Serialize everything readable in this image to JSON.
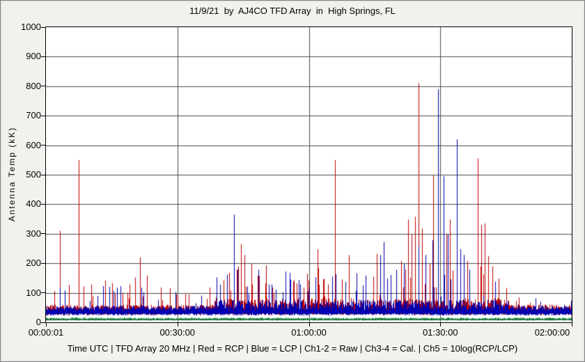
{
  "chart_data": {
    "type": "line",
    "title": "11/9/21  by  AJ4CO TFD Array  in  High Springs, FL",
    "xlabel": "Time UTC",
    "ylabel": "Antenna Temp (kK)",
    "ylim": [
      0,
      1000
    ],
    "y_ticks": [
      0,
      100,
      200,
      300,
      400,
      500,
      600,
      700,
      800,
      900,
      1000
    ],
    "x_ticks": [
      {
        "label": "00:00:01",
        "pos": 0
      },
      {
        "label": "00:30:00",
        "pos": 0.25
      },
      {
        "label": "01:00:00",
        "pos": 0.5
      },
      {
        "label": "01:30:00",
        "pos": 0.75
      },
      {
        "label": "02:00:00",
        "pos": 1
      }
    ],
    "x_range_seconds": [
      0,
      7200
    ],
    "grid": true,
    "legend_position": "none",
    "caption": "Time UTC | TFD Array 20 MHz | Red = RCP | Blue = LCP | Ch1-2 = Raw | Ch3-4 = Cal. | Ch5 = 10log(RCP/LCP)",
    "busy_regions": [
      [
        0,
        2300,
        75
      ],
      [
        2300,
        6350,
        135
      ],
      [
        6350,
        7200,
        45
      ]
    ],
    "series": [
      {
        "name": "RCP (Red)",
        "color": "#c00000",
        "baseline": 38,
        "noise_scale": 1.0,
        "spikes": [
          [
            190,
            310
          ],
          [
            448,
            550
          ],
          [
            620,
            128
          ],
          [
            810,
            142
          ],
          [
            905,
            133
          ],
          [
            1050,
            100
          ],
          [
            1145,
            128
          ],
          [
            1220,
            152
          ],
          [
            1290,
            220
          ],
          [
            1385,
            158
          ],
          [
            1570,
            118
          ],
          [
            1800,
            90
          ],
          [
            2240,
            118
          ],
          [
            2335,
            133
          ],
          [
            2430,
            142
          ],
          [
            2530,
            108
          ],
          [
            2670,
            265
          ],
          [
            2720,
            228
          ],
          [
            2815,
            198
          ],
          [
            2900,
            158
          ],
          [
            3000,
            132
          ],
          [
            3100,
            118
          ],
          [
            3385,
            138
          ],
          [
            3435,
            132
          ],
          [
            3530,
            118
          ],
          [
            3720,
            248
          ],
          [
            3860,
            128
          ],
          [
            3957,
            550
          ],
          [
            4150,
            228
          ],
          [
            4250,
            138
          ],
          [
            4530,
            232
          ],
          [
            4625,
            268
          ],
          [
            4720,
            148
          ],
          [
            4860,
            208
          ],
          [
            4958,
            348
          ],
          [
            5010,
            298
          ],
          [
            5053,
            358
          ],
          [
            5101,
            810
          ],
          [
            5150,
            318
          ],
          [
            5250,
            198
          ],
          [
            5302,
            498
          ],
          [
            5480,
            298
          ],
          [
            5530,
            348
          ],
          [
            5625,
            232
          ],
          [
            5770,
            208
          ],
          [
            5912,
            555
          ],
          [
            5960,
            330
          ],
          [
            6010,
            335
          ],
          [
            6060,
            225
          ],
          [
            6110,
            190
          ],
          [
            6200,
            148
          ]
        ]
      },
      {
        "name": "LCP (Blue)",
        "color": "#0000b0",
        "baseline": 36,
        "noise_scale": 0.9,
        "spikes": [
          [
            260,
            108
          ],
          [
            2337,
            152
          ],
          [
            2385,
            128
          ],
          [
            2575,
            365
          ],
          [
            2620,
            178
          ],
          [
            2908,
            178
          ],
          [
            3050,
            128
          ],
          [
            3480,
            128
          ],
          [
            3600,
            118
          ],
          [
            4100,
            138
          ],
          [
            4380,
            158
          ],
          [
            4578,
            228
          ],
          [
            4625,
            272
          ],
          [
            4673,
            148
          ],
          [
            4800,
            178
          ],
          [
            4900,
            198
          ],
          [
            5101,
            258
          ],
          [
            5200,
            228
          ],
          [
            5290,
            278
          ],
          [
            5370,
            790
          ],
          [
            5445,
            495
          ],
          [
            5500,
            298
          ],
          [
            5626,
            620
          ],
          [
            5673,
            248
          ],
          [
            5721,
            228
          ],
          [
            5800,
            178
          ],
          [
            6150,
            138
          ]
        ]
      },
      {
        "name": "Ch5 10log(RCP/LCP) (Green)",
        "color": "#117733",
        "baseline": 10,
        "noise_scale": 0,
        "spikes": []
      }
    ]
  }
}
